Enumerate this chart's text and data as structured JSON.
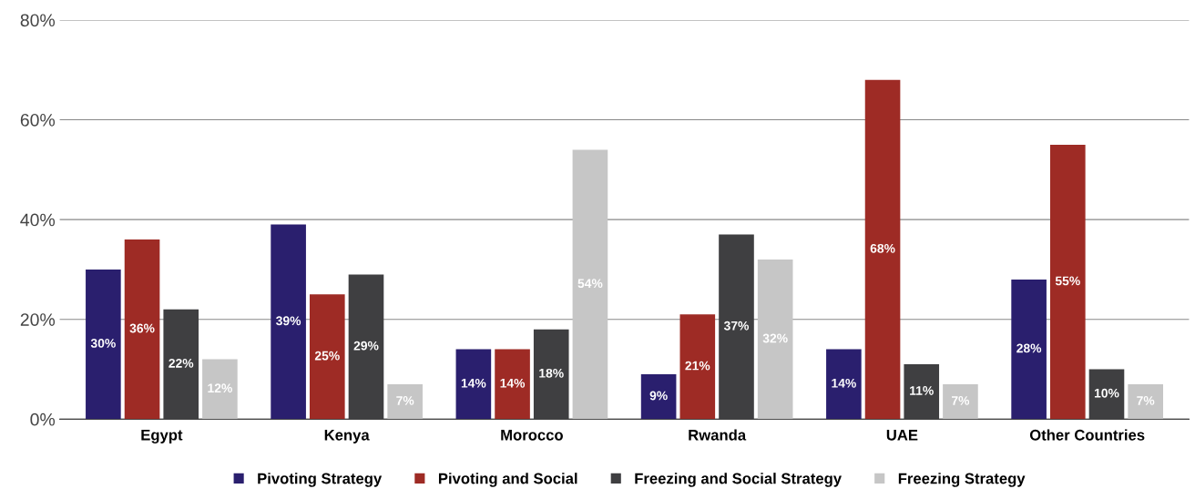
{
  "chart_data": {
    "type": "bar",
    "categories": [
      "Egypt",
      "Kenya",
      "Morocco",
      "Rwanda",
      "UAE",
      "Other Countries"
    ],
    "series": [
      {
        "name": "Pivoting Strategy",
        "color": "#2a1f6e",
        "values": [
          30,
          39,
          14,
          9,
          14,
          28
        ],
        "value_labels": [
          "30%",
          "39%",
          "14%",
          "9%",
          "14%",
          "28%"
        ]
      },
      {
        "name": "Pivoting and Social",
        "color": "#9e2b25",
        "values": [
          36,
          25,
          14,
          21,
          68,
          55
        ],
        "value_labels": [
          "36%",
          "25%",
          "14%",
          "21%",
          "68%",
          "55%"
        ]
      },
      {
        "name": "Freezing and Social Strategy",
        "color": "#3f3f41",
        "values": [
          22,
          29,
          18,
          37,
          11,
          10
        ],
        "value_labels": [
          "22%",
          "29%",
          "18%",
          "37%",
          "11%",
          "10%"
        ]
      },
      {
        "name": "Freezing Strategy",
        "color": "#c6c6c6",
        "values": [
          12,
          7,
          54,
          32,
          7,
          7
        ],
        "value_labels": [
          "12%",
          "7%",
          "54%",
          "32%",
          "7%",
          "7%"
        ]
      }
    ],
    "ylim": [
      0,
      80
    ],
    "yticks": [
      {
        "value": 0,
        "label": "0%"
      },
      {
        "value": 20,
        "label": "20%"
      },
      {
        "value": 40,
        "label": "40%"
      },
      {
        "value": 60,
        "label": "60%"
      },
      {
        "value": 80,
        "label": "80%"
      }
    ],
    "grid": "y",
    "legend": "bottom"
  }
}
